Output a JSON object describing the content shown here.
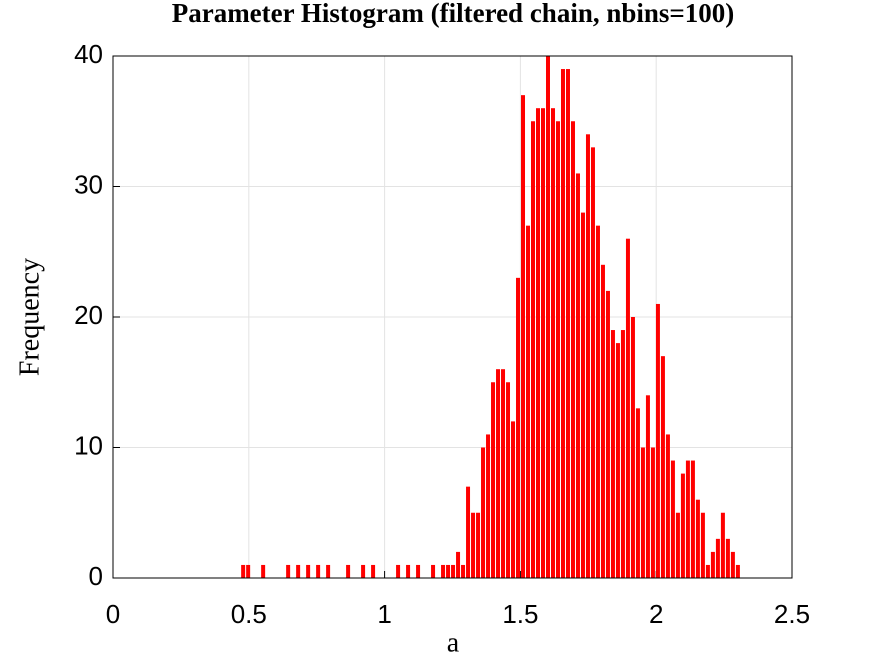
{
  "chart_data": {
    "type": "histogram",
    "title": "Parameter Histogram (filtered chain, nbins=100)",
    "xlabel": "a",
    "ylabel": "Frequency",
    "color": "#ff0000",
    "grid": true,
    "bins": [
      0.47,
      0.4884,
      0.5068,
      0.5252,
      0.5436,
      0.562,
      0.5804,
      0.5988,
      0.6172,
      0.6356,
      0.654,
      0.6724,
      0.6908,
      0.7092,
      0.7276,
      0.746,
      0.7644,
      0.7828,
      0.8012,
      0.8196,
      0.838,
      0.8564,
      0.8748,
      0.8932,
      0.9116,
      0.93,
      0.9484,
      0.9668,
      0.9852,
      1.0036,
      1.022,
      1.0404,
      1.0588,
      1.0772,
      1.0956,
      1.114,
      1.1324,
      1.1508,
      1.1692,
      1.1876,
      1.206,
      1.2244,
      1.2428,
      1.2612,
      1.2796,
      1.298,
      1.3164,
      1.3348,
      1.3532,
      1.3716,
      1.39,
      1.4084,
      1.4268,
      1.4452,
      1.4636,
      1.482,
      1.5004,
      1.5188,
      1.5372,
      1.5556,
      1.574,
      1.5924,
      1.6108,
      1.6292,
      1.6476,
      1.666,
      1.6844,
      1.7028,
      1.7212,
      1.7396,
      1.758,
      1.7764,
      1.7948,
      1.8132,
      1.8316,
      1.85,
      1.8684,
      1.8868,
      1.9052,
      1.9236,
      1.942,
      1.9604,
      1.9788,
      1.9972,
      2.0156,
      2.034,
      2.0524,
      2.0708,
      2.0892,
      2.1076,
      2.126,
      2.1444,
      2.1628,
      2.1812,
      2.1996,
      2.218,
      2.2364,
      2.2548,
      2.2732,
      2.2916,
      2.31
    ],
    "values": [
      1,
      1,
      0,
      0,
      1,
      0,
      0,
      0,
      0,
      1,
      0,
      1,
      0,
      1,
      0,
      1,
      0,
      1,
      0,
      0,
      0,
      1,
      0,
      0,
      1,
      0,
      1,
      0,
      0,
      0,
      0,
      1,
      0,
      1,
      0,
      1,
      0,
      0,
      1,
      0,
      1,
      1,
      1,
      2,
      1,
      7,
      5,
      5,
      10,
      11,
      15,
      16,
      16,
      15,
      12,
      23,
      37,
      27,
      35,
      36,
      36,
      40,
      36,
      35,
      39,
      39,
      35,
      31,
      28,
      34,
      33,
      27,
      24,
      22,
      19,
      18,
      19,
      26,
      20,
      13,
      10,
      14,
      10,
      21,
      17,
      11,
      9,
      5,
      8,
      9,
      9,
      6,
      5,
      1,
      2,
      3,
      5,
      3,
      2,
      1
    ],
    "xlim": [
      0,
      2.5
    ],
    "xticks": [
      0,
      0.5,
      1,
      1.5,
      2,
      2.5
    ],
    "ylim": [
      0,
      40
    ],
    "yticks": [
      0,
      10,
      20,
      30,
      40
    ]
  }
}
